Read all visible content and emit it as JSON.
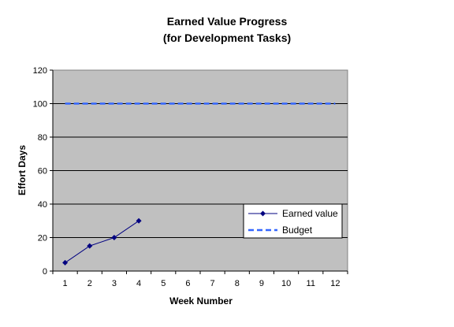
{
  "chart_data": {
    "type": "line",
    "title_line1": "Earned Value Progress",
    "title_line2": "(for Development Tasks)",
    "xlabel": "Week Number",
    "ylabel": "Effort Days",
    "categories": [
      "1",
      "2",
      "3",
      "4",
      "5",
      "6",
      "7",
      "8",
      "9",
      "10",
      "11",
      "12"
    ],
    "y_ticks": [
      "0",
      "20",
      "40",
      "60",
      "80",
      "100",
      "120"
    ],
    "ylim": [
      0,
      120
    ],
    "grid": "horizontal",
    "legend_position": "lower-right",
    "series": [
      {
        "name": "Earned value",
        "style": "solid-with-diamond-markers",
        "color": "#000080",
        "x": [
          1,
          2,
          3,
          4
        ],
        "values": [
          5,
          15,
          20,
          30
        ]
      },
      {
        "name": "Budget",
        "style": "dashed",
        "color": "#3366FF",
        "x": [
          1,
          2,
          3,
          4,
          5,
          6,
          7,
          8,
          9,
          10,
          11,
          12
        ],
        "values": [
          100,
          100,
          100,
          100,
          100,
          100,
          100,
          100,
          100,
          100,
          100,
          100
        ]
      }
    ],
    "colors": {
      "plot_background": "#C0C0C0",
      "gridline": "#000000",
      "axis": "#808080"
    }
  }
}
